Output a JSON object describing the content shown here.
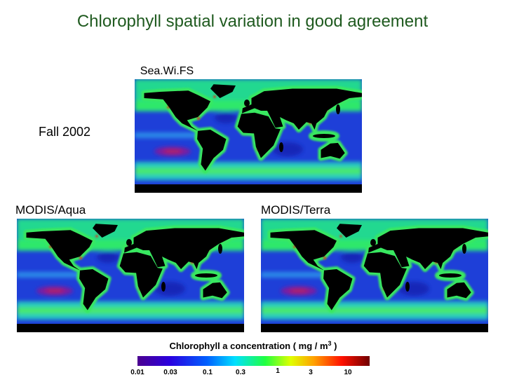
{
  "title": "Chlorophyll spatial variation in good agreement",
  "season_label": "Fall 2002",
  "panels": [
    {
      "label": "Sea.Wi.FS"
    },
    {
      "label": "MODIS/Aqua"
    },
    {
      "label": "MODIS/Terra"
    }
  ],
  "colorbar": {
    "title_parts": [
      "Chlorophyll a concentration ( mg / m",
      "3",
      " )"
    ],
    "ticks": [
      "0.01",
      "0.03",
      "0.1",
      "0.3",
      "1",
      "3",
      "10"
    ]
  }
}
